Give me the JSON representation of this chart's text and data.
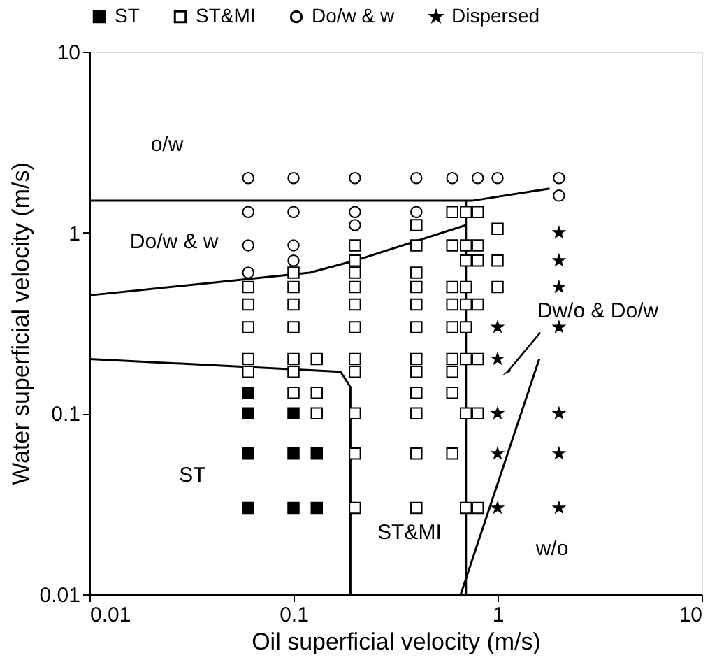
{
  "chart_data": {
    "type": "scatter",
    "xlabel": "Oil superficial velocity (m/s)",
    "ylabel": "Water superficial velocity (m/s)",
    "log": "xy",
    "xlim": [
      0.01,
      10
    ],
    "ylim": [
      0.01,
      10
    ],
    "xticks": [
      0.01,
      0.1,
      1,
      10
    ],
    "yticks": [
      0.01,
      0.1,
      1,
      10
    ],
    "grid": false,
    "legend": "top",
    "series": [
      {
        "name": "ST",
        "marker": "square",
        "color": "#000000",
        "x": [
          0.06,
          0.06,
          0.06,
          0.06,
          0.1,
          0.1,
          0.1,
          0.13,
          0.13
        ],
        "values": [
          0.13,
          0.1,
          0.06,
          0.03,
          0.1,
          0.06,
          0.03,
          0.06,
          0.03
        ]
      },
      {
        "name": "ST&MI",
        "marker": "square",
        "color": "#ffffff",
        "x": [
          0.06,
          0.06,
          0.06,
          0.06,
          0.06,
          0.1,
          0.1,
          0.1,
          0.1,
          0.1,
          0.1,
          0.1,
          0.13,
          0.13,
          0.13,
          0.2,
          0.2,
          0.2,
          0.2,
          0.2,
          0.2,
          0.2,
          0.2,
          0.2,
          0.2,
          0.2,
          0.4,
          0.4,
          0.4,
          0.4,
          0.4,
          0.4,
          0.4,
          0.4,
          0.4,
          0.4,
          0.4,
          0.4,
          0.6,
          0.6,
          0.6,
          0.6,
          0.6,
          0.6,
          0.6,
          0.6,
          0.6,
          0.7,
          0.7,
          0.7,
          0.7,
          0.7,
          0.7,
          0.7,
          0.7,
          0.7,
          0.8,
          0.8,
          0.8,
          0.8,
          0.8,
          0.8,
          0.8,
          1.0,
          1.0,
          1.0
        ],
        "values": [
          0.5,
          0.4,
          0.3,
          0.2,
          0.17,
          0.6,
          0.5,
          0.4,
          0.3,
          0.2,
          0.17,
          0.13,
          0.2,
          0.13,
          0.1,
          0.85,
          0.7,
          0.6,
          0.5,
          0.4,
          0.3,
          0.2,
          0.17,
          0.1,
          0.06,
          0.03,
          1.1,
          0.85,
          0.6,
          0.5,
          0.4,
          0.3,
          0.2,
          0.17,
          0.13,
          0.1,
          0.06,
          0.03,
          1.3,
          0.85,
          0.5,
          0.4,
          0.3,
          0.2,
          0.17,
          0.13,
          0.06,
          1.3,
          0.85,
          0.7,
          0.5,
          0.4,
          0.3,
          0.2,
          0.1,
          0.03,
          1.3,
          0.85,
          0.7,
          0.4,
          0.2,
          0.1,
          0.03,
          1.05,
          0.7,
          0.5
        ]
      },
      {
        "name": "Do/w & w",
        "marker": "circle",
        "color": "#ffffff",
        "x": [
          0.06,
          0.06,
          0.06,
          0.06,
          0.1,
          0.1,
          0.1,
          0.1,
          0.2,
          0.2,
          0.2,
          0.4,
          0.4,
          0.6,
          0.8,
          1.0,
          2.0,
          2.0
        ],
        "values": [
          2,
          1.3,
          0.85,
          0.6,
          2,
          1.3,
          0.85,
          0.7,
          2,
          1.3,
          1.1,
          2,
          1.3,
          2,
          2,
          2,
          2,
          1.6
        ]
      },
      {
        "name": "Dispersed",
        "marker": "star",
        "color": "#000000",
        "x": [
          1.0,
          1.0,
          1.0,
          1.0,
          1.0,
          2.0,
          2.0,
          2.0,
          2.0,
          2.0,
          2.0,
          2.0
        ],
        "values": [
          0.3,
          0.2,
          0.1,
          0.06,
          0.03,
          1.0,
          0.7,
          0.5,
          0.3,
          0.1,
          0.06,
          0.03
        ]
      },
      {
        "type": "line",
        "marker": "none",
        "line_style": "solid",
        "color": "#000000",
        "x": [
          0.01,
          0.75,
          1.8
        ],
        "values": [
          1.5,
          1.5,
          1.75
        ]
      },
      {
        "type": "line",
        "marker": "none",
        "line_style": "solid",
        "color": "#000000",
        "x": [
          0.01,
          0.12,
          0.2,
          0.7
        ],
        "values": [
          0.45,
          0.6,
          0.7,
          1.1
        ]
      },
      {
        "type": "line",
        "marker": "none",
        "line_style": "solid",
        "color": "#000000",
        "x": [
          0.7,
          0.7
        ],
        "values": [
          0.01,
          1.5
        ]
      },
      {
        "type": "line",
        "marker": "none",
        "line_style": "solid",
        "color": "#000000",
        "x": [
          0.01,
          0.17,
          0.19,
          0.19
        ],
        "values": [
          0.2,
          0.17,
          0.14,
          0.01
        ]
      },
      {
        "type": "line",
        "marker": "none",
        "line_style": "solid",
        "color": "#000000",
        "x": [
          0.66,
          1.6
        ],
        "values": [
          0.01,
          0.2
        ]
      }
    ],
    "annotations": [
      "o/w",
      "Do/w & w",
      "ST",
      "ST&MI",
      "w/o",
      "Dw/o & Do/w"
    ]
  }
}
